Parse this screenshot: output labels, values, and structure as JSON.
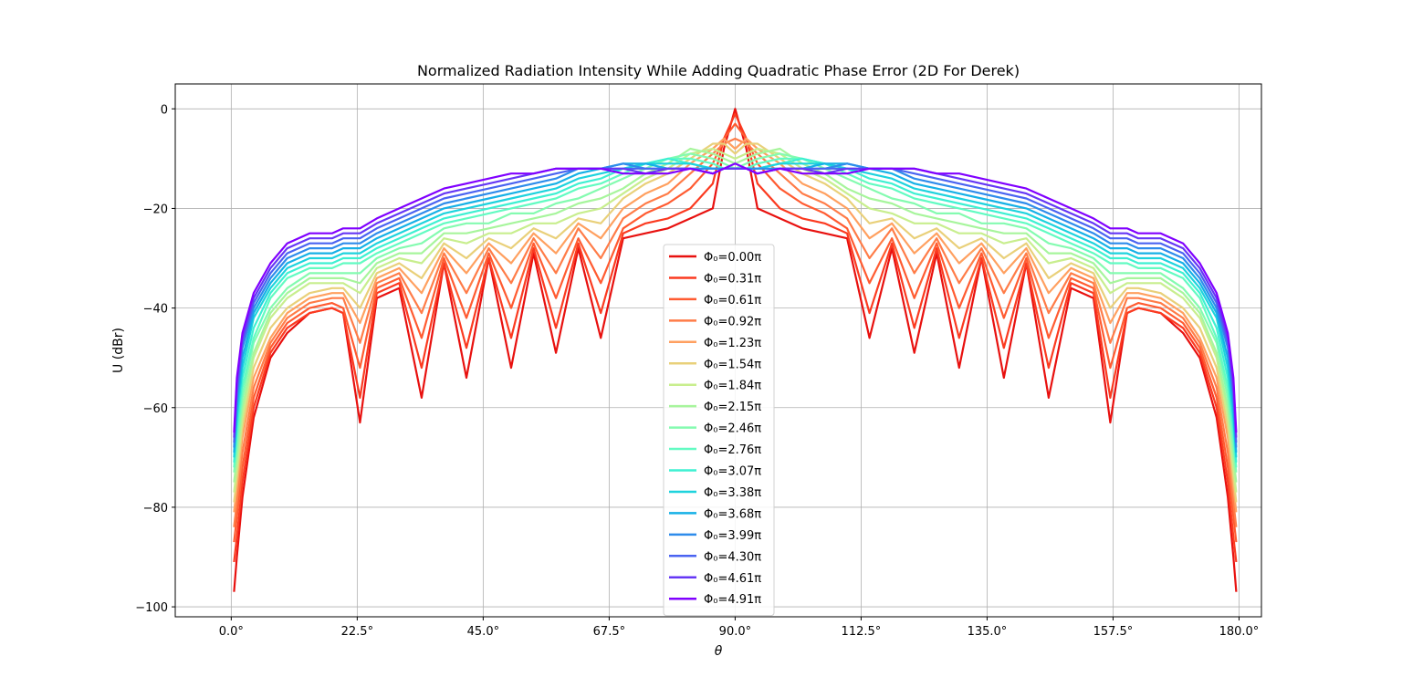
{
  "chart_data": {
    "type": "line",
    "title": "Normalized Radiation Intensity While Adding Quadratic Phase Error (2D For Derek)",
    "xlabel": "θ",
    "ylabel": "U (dBr)",
    "xlim": [
      -10,
      184
    ],
    "ylim": [
      -102,
      5
    ],
    "xticks": [
      0,
      22.5,
      45,
      67.5,
      90,
      112.5,
      135,
      157.5,
      180
    ],
    "xtick_labels": [
      "0.0°",
      "22.5°",
      "45.0°",
      "67.5°",
      "90.0°",
      "112.5°",
      "135.0°",
      "157.5°",
      "180.0°"
    ],
    "yticks": [
      0,
      -20,
      -40,
      -60,
      -80,
      -100
    ],
    "ytick_labels": [
      "0",
      "−20",
      "−40",
      "−60",
      "−80",
      "−100"
    ],
    "grid": true,
    "legend": "center",
    "x_samples": [
      0.5,
      1,
      2,
      4,
      7,
      10,
      14,
      18,
      20,
      23,
      26,
      30,
      34,
      38,
      42,
      46,
      50,
      54,
      58,
      62,
      66,
      70,
      74,
      78,
      82,
      86,
      88,
      90,
      92,
      94,
      98,
      102,
      106,
      110,
      114,
      118,
      122,
      126,
      130,
      134,
      138,
      142,
      146,
      150,
      154,
      157,
      160,
      162,
      166,
      170,
      173,
      176,
      178,
      179,
      179.5
    ],
    "series": [
      {
        "name": "Φ₀=0.00π",
        "color": "#e8110f",
        "values": [
          -97,
          -90,
          -78,
          -62,
          -50,
          -45,
          -41,
          -40,
          -41,
          -63,
          -38,
          -36,
          -58,
          -31,
          -54,
          -30,
          -52,
          -29,
          -49,
          -28,
          -46,
          -26,
          -25,
          -24,
          -22,
          -20,
          -8,
          0,
          -8,
          -20,
          -22,
          -24,
          -25,
          -26,
          -46,
          -28,
          -49,
          -29,
          -52,
          -30,
          -54,
          -31,
          -58,
          -36,
          -38,
          -63,
          -41,
          -40,
          -41,
          -45,
          -50,
          -62,
          -78,
          -90,
          -97
        ]
      },
      {
        "name": "Φ₀=0.31π",
        "color": "#fb3a20",
        "values": [
          -91,
          -86,
          -75,
          -60,
          -49,
          -44,
          -41,
          -40,
          -41,
          -58,
          -37,
          -35,
          -52,
          -31,
          -48,
          -30,
          -46,
          -28,
          -44,
          -27,
          -41,
          -25,
          -23,
          -22,
          -20,
          -15,
          -6,
          -1,
          -6,
          -15,
          -20,
          -22,
          -23,
          -25,
          -41,
          -27,
          -44,
          -28,
          -46,
          -30,
          -48,
          -31,
          -52,
          -35,
          -37,
          -58,
          -41,
          -40,
          -41,
          -44,
          -49,
          -60,
          -75,
          -86,
          -91
        ]
      },
      {
        "name": "Φ₀=0.61π",
        "color": "#ff5b31",
        "values": [
          -87,
          -82,
          -72,
          -58,
          -48,
          -43,
          -40,
          -39,
          -40,
          -52,
          -36,
          -34,
          -46,
          -30,
          -42,
          -29,
          -40,
          -27,
          -38,
          -26,
          -35,
          -24,
          -21,
          -19,
          -16,
          -11,
          -6,
          -3,
          -6,
          -11,
          -16,
          -19,
          -21,
          -24,
          -35,
          -26,
          -38,
          -27,
          -40,
          -29,
          -42,
          -30,
          -46,
          -34,
          -36,
          -52,
          -40,
          -39,
          -40,
          -43,
          -48,
          -58,
          -72,
          -82,
          -87
        ]
      },
      {
        "name": "Φ₀=0.92π",
        "color": "#ff7c48",
        "values": [
          -84,
          -79,
          -69,
          -56,
          -47,
          -42,
          -39,
          -38,
          -38,
          -47,
          -35,
          -33,
          -41,
          -29,
          -37,
          -28,
          -35,
          -26,
          -33,
          -24,
          -30,
          -22,
          -19,
          -17,
          -13,
          -9,
          -7,
          -6,
          -7,
          -9,
          -13,
          -17,
          -19,
          -22,
          -30,
          -24,
          -33,
          -26,
          -35,
          -28,
          -37,
          -29,
          -41,
          -33,
          -35,
          -47,
          -38,
          -38,
          -39,
          -42,
          -47,
          -56,
          -69,
          -79,
          -84
        ]
      },
      {
        "name": "Φ₀=1.23π",
        "color": "#ffa060",
        "values": [
          -81,
          -76,
          -66,
          -54,
          -46,
          -41,
          -38,
          -37,
          -37,
          -43,
          -34,
          -32,
          -37,
          -28,
          -33,
          -27,
          -31,
          -25,
          -29,
          -23,
          -26,
          -20,
          -17,
          -15,
          -11,
          -8,
          -6,
          -8,
          -6,
          -8,
          -11,
          -15,
          -17,
          -20,
          -26,
          -23,
          -29,
          -25,
          -31,
          -27,
          -33,
          -28,
          -37,
          -32,
          -34,
          -43,
          -37,
          -37,
          -38,
          -41,
          -46,
          -54,
          -66,
          -76,
          -81
        ]
      },
      {
        "name": "Φ₀=1.54π",
        "color": "#e9d07a",
        "values": [
          -79,
          -74,
          -64,
          -52,
          -44,
          -40,
          -37,
          -36,
          -36,
          -40,
          -33,
          -31,
          -34,
          -27,
          -30,
          -26,
          -28,
          -24,
          -26,
          -22,
          -23,
          -18,
          -15,
          -13,
          -10,
          -7,
          -7,
          -9,
          -7,
          -7,
          -10,
          -13,
          -15,
          -18,
          -23,
          -22,
          -26,
          -24,
          -28,
          -26,
          -30,
          -27,
          -34,
          -31,
          -33,
          -40,
          -36,
          -36,
          -37,
          -40,
          -44,
          -52,
          -64,
          -74,
          -79
        ]
      },
      {
        "name": "Φ₀=1.84π",
        "color": "#c8ee8e",
        "values": [
          -77,
          -72,
          -62,
          -50,
          -42,
          -38,
          -35,
          -35,
          -35,
          -37,
          -32,
          -30,
          -31,
          -26,
          -27,
          -25,
          -25,
          -23,
          -23,
          -21,
          -20,
          -17,
          -14,
          -12,
          -9,
          -8,
          -9,
          -10,
          -9,
          -8,
          -9,
          -12,
          -14,
          -17,
          -20,
          -21,
          -23,
          -23,
          -25,
          -25,
          -27,
          -26,
          -31,
          -30,
          -32,
          -37,
          -35,
          -35,
          -35,
          -38,
          -42,
          -50,
          -62,
          -72,
          -77
        ]
      },
      {
        "name": "Φ₀=2.15π",
        "color": "#a7f59c",
        "values": [
          -75,
          -70,
          -60,
          -49,
          -41,
          -37,
          -34,
          -34,
          -34,
          -35,
          -31,
          -29,
          -29,
          -25,
          -25,
          -24,
          -23,
          -22,
          -21,
          -19,
          -18,
          -16,
          -13,
          -11,
          -8,
          -9,
          -10,
          -11,
          -10,
          -9,
          -8,
          -11,
          -13,
          -16,
          -18,
          -19,
          -21,
          -22,
          -23,
          -24,
          -25,
          -25,
          -29,
          -29,
          -31,
          -35,
          -34,
          -34,
          -34,
          -37,
          -41,
          -49,
          -60,
          -70,
          -75
        ]
      },
      {
        "name": "Φ₀=2.46π",
        "color": "#84fbb0",
        "values": [
          -73,
          -68,
          -58,
          -47,
          -40,
          -36,
          -33,
          -33,
          -33,
          -33,
          -30,
          -28,
          -27,
          -24,
          -23,
          -23,
          -21,
          -21,
          -19,
          -18,
          -16,
          -14,
          -12,
          -10,
          -9,
          -10,
          -11,
          -12,
          -11,
          -10,
          -9,
          -10,
          -12,
          -14,
          -16,
          -18,
          -19,
          -21,
          -21,
          -23,
          -23,
          -24,
          -27,
          -28,
          -30,
          -33,
          -33,
          -33,
          -33,
          -36,
          -40,
          -47,
          -58,
          -68,
          -73
        ]
      },
      {
        "name": "Φ₀=2.76π",
        "color": "#62fbc2",
        "values": [
          -72,
          -66,
          -56,
          -46,
          -38,
          -34,
          -32,
          -32,
          -31,
          -31,
          -29,
          -27,
          -25,
          -23,
          -22,
          -21,
          -20,
          -19,
          -18,
          -16,
          -15,
          -13,
          -11,
          -10,
          -10,
          -11,
          -12,
          -12,
          -12,
          -11,
          -10,
          -10,
          -11,
          -13,
          -15,
          -16,
          -18,
          -19,
          -20,
          -21,
          -22,
          -23,
          -25,
          -27,
          -29,
          -31,
          -31,
          -32,
          -32,
          -34,
          -38,
          -46,
          -56,
          -66,
          -72
        ]
      },
      {
        "name": "Φ₀=3.07π",
        "color": "#3ef0d2",
        "values": [
          -71,
          -64,
          -54,
          -44,
          -37,
          -33,
          -31,
          -31,
          -30,
          -30,
          -28,
          -26,
          -24,
          -22,
          -21,
          -20,
          -19,
          -18,
          -17,
          -15,
          -14,
          -12,
          -11,
          -10,
          -11,
          -12,
          -12,
          -12,
          -12,
          -12,
          -11,
          -10,
          -11,
          -12,
          -14,
          -15,
          -17,
          -18,
          -19,
          -20,
          -21,
          -22,
          -24,
          -26,
          -28,
          -30,
          -30,
          -31,
          -31,
          -33,
          -37,
          -44,
          -54,
          -64,
          -71
        ]
      },
      {
        "name": "Φ₀=3.38π",
        "color": "#1ed3dd",
        "values": [
          -70,
          -62,
          -52,
          -42,
          -36,
          -32,
          -30,
          -30,
          -29,
          -29,
          -27,
          -25,
          -23,
          -21,
          -20,
          -19,
          -18,
          -17,
          -16,
          -14,
          -13,
          -12,
          -11,
          -11,
          -11,
          -12,
          -12,
          -12,
          -12,
          -12,
          -11,
          -11,
          -11,
          -12,
          -13,
          -14,
          -16,
          -17,
          -18,
          -19,
          -20,
          -21,
          -23,
          -25,
          -27,
          -29,
          -29,
          -30,
          -30,
          -32,
          -36,
          -42,
          -52,
          -62,
          -70
        ]
      },
      {
        "name": "Φ₀=3.68π",
        "color": "#16b1e6",
        "values": [
          -69,
          -60,
          -50,
          -41,
          -35,
          -31,
          -29,
          -29,
          -28,
          -28,
          -26,
          -24,
          -22,
          -20,
          -19,
          -18,
          -17,
          -16,
          -15,
          -13,
          -12,
          -11,
          -11,
          -12,
          -12,
          -12,
          -12,
          -12,
          -12,
          -12,
          -12,
          -12,
          -11,
          -11,
          -12,
          -13,
          -15,
          -16,
          -17,
          -18,
          -19,
          -20,
          -22,
          -24,
          -26,
          -28,
          -28,
          -29,
          -29,
          -31,
          -35,
          -41,
          -50,
          -60,
          -69
        ]
      },
      {
        "name": "Φ₀=3.99π",
        "color": "#2e8ceb",
        "values": [
          -68,
          -58,
          -48,
          -40,
          -34,
          -30,
          -28,
          -28,
          -27,
          -27,
          -25,
          -23,
          -21,
          -19,
          -18,
          -17,
          -16,
          -15,
          -14,
          -12,
          -12,
          -11,
          -12,
          -12,
          -12,
          -12,
          -12,
          -12,
          -12,
          -12,
          -12,
          -12,
          -12,
          -11,
          -12,
          -12,
          -14,
          -15,
          -16,
          -17,
          -18,
          -19,
          -21,
          -23,
          -25,
          -27,
          -27,
          -28,
          -28,
          -30,
          -34,
          -40,
          -48,
          -58,
          -68
        ]
      },
      {
        "name": "Φ₀=4.30π",
        "color": "#4a63f1",
        "values": [
          -67,
          -57,
          -47,
          -39,
          -33,
          -29,
          -27,
          -27,
          -26,
          -26,
          -24,
          -22,
          -20,
          -18,
          -17,
          -16,
          -15,
          -14,
          -13,
          -12,
          -12,
          -12,
          -12,
          -12,
          -12,
          -13,
          -12,
          -12,
          -12,
          -13,
          -12,
          -12,
          -12,
          -12,
          -12,
          -12,
          -13,
          -14,
          -15,
          -16,
          -17,
          -18,
          -20,
          -22,
          -24,
          -26,
          -26,
          -27,
          -27,
          -29,
          -33,
          -39,
          -47,
          -57,
          -67
        ]
      },
      {
        "name": "Φ₀=4.61π",
        "color": "#6537f5",
        "values": [
          -66,
          -55,
          -46,
          -38,
          -32,
          -28,
          -26,
          -26,
          -25,
          -25,
          -23,
          -21,
          -19,
          -17,
          -16,
          -15,
          -14,
          -13,
          -12,
          -12,
          -12,
          -12,
          -13,
          -12,
          -12,
          -13,
          -12,
          -12,
          -12,
          -13,
          -12,
          -12,
          -13,
          -12,
          -12,
          -12,
          -12,
          -13,
          -14,
          -15,
          -16,
          -17,
          -19,
          -21,
          -23,
          -25,
          -25,
          -26,
          -26,
          -28,
          -32,
          -38,
          -46,
          -55,
          -66
        ]
      },
      {
        "name": "Φ₀=4.91π",
        "color": "#8000ff",
        "values": [
          -65,
          -54,
          -45,
          -37,
          -31,
          -27,
          -25,
          -25,
          -24,
          -24,
          -22,
          -20,
          -18,
          -16,
          -15,
          -14,
          -13,
          -13,
          -12,
          -12,
          -12,
          -13,
          -13,
          -13,
          -12,
          -13,
          -12,
          -11,
          -12,
          -13,
          -12,
          -13,
          -13,
          -13,
          -12,
          -12,
          -12,
          -13,
          -13,
          -14,
          -15,
          -16,
          -18,
          -20,
          -22,
          -24,
          -24,
          -25,
          -25,
          -27,
          -31,
          -37,
          -45,
          -54,
          -65
        ]
      }
    ]
  }
}
